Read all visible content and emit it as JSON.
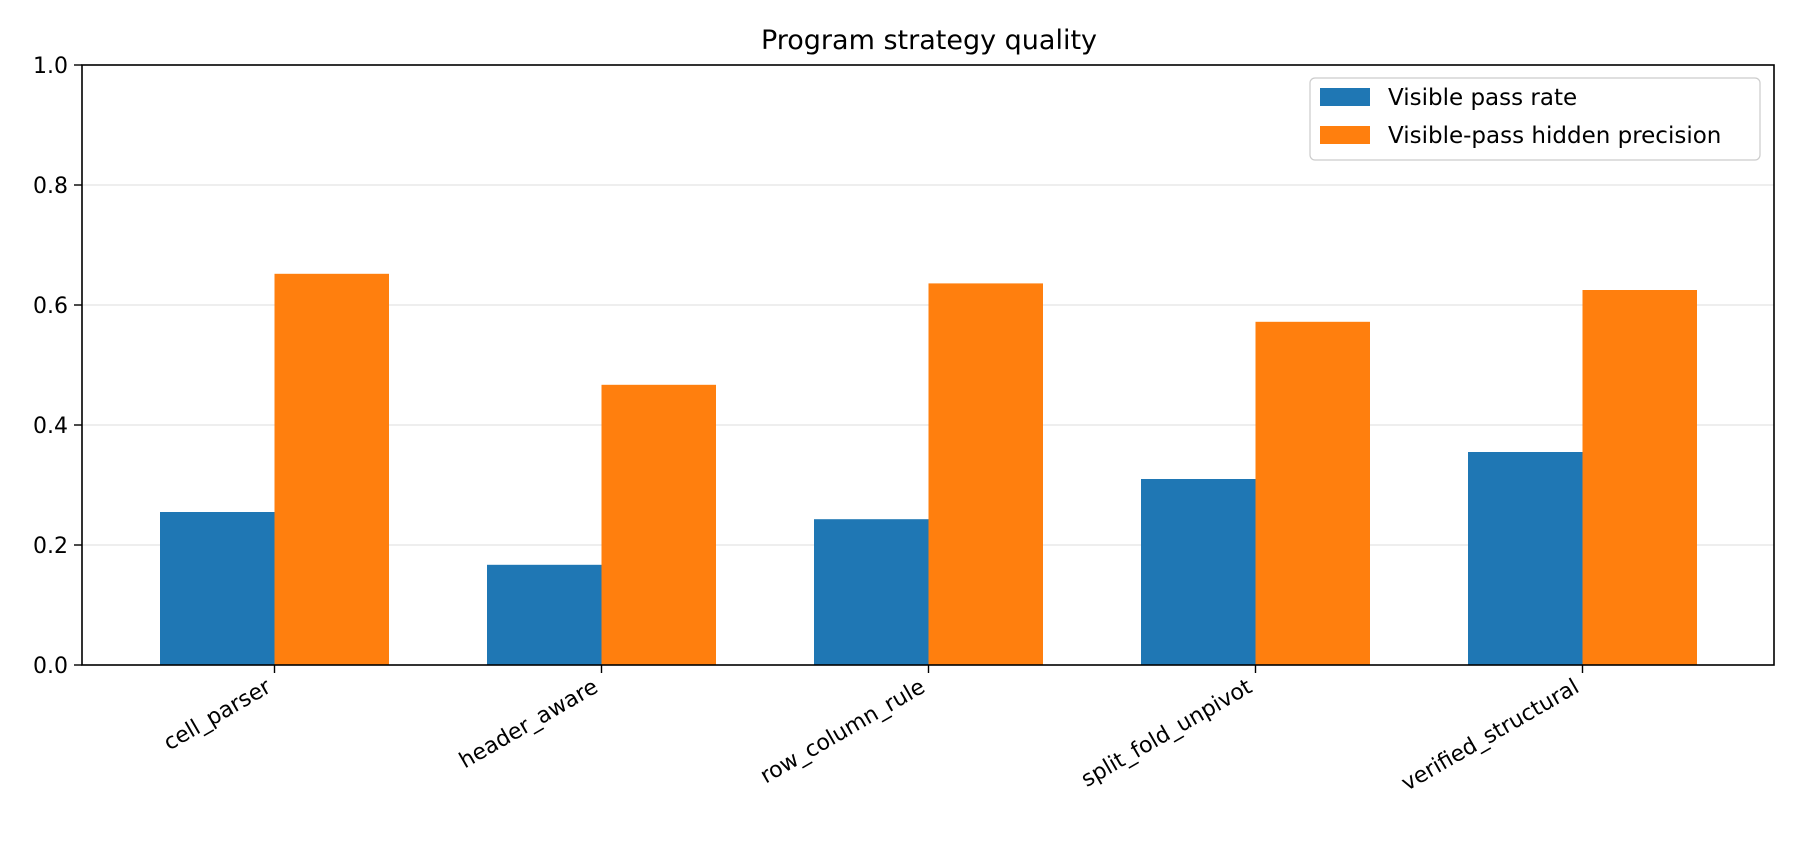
{
  "chart_data": {
    "type": "bar",
    "title": "Program strategy quality",
    "xlabel": "",
    "ylabel": "",
    "categories": [
      "cell_parser",
      "header_aware",
      "row_column_rule",
      "split_fold_unpivot",
      "verified_structural"
    ],
    "series": [
      {
        "name": "Visible pass rate",
        "color": "#1f77b4",
        "values": [
          0.255,
          0.167,
          0.243,
          0.31,
          0.355
        ]
      },
      {
        "name": "Visible-pass hidden precision",
        "color": "#ff7f0e",
        "values": [
          0.652,
          0.467,
          0.636,
          0.572,
          0.625
        ]
      }
    ],
    "ylim": [
      0,
      1.0
    ],
    "yticks": [
      "0.0",
      "0.2",
      "0.4",
      "0.6",
      "0.8",
      "1.0"
    ],
    "grid": "y",
    "legend_position": "top-right"
  }
}
